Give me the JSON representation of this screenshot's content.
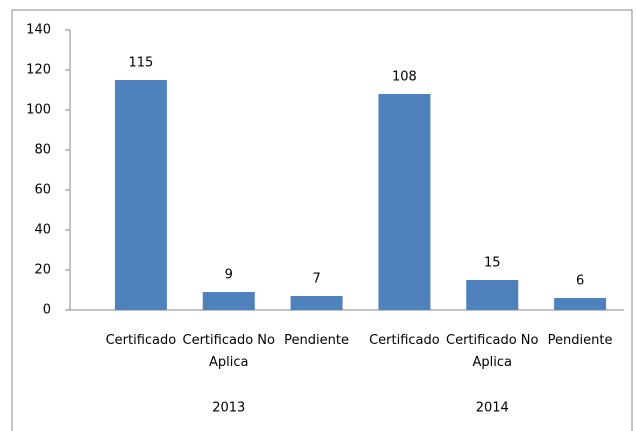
{
  "chart_data": {
    "type": "bar",
    "categories": [
      "Certificado",
      "Certificado No Aplica",
      "Pendiente",
      "Certificado",
      "Certificado No Aplica",
      "Pendiente"
    ],
    "groups": [
      "2013",
      "2014"
    ],
    "values": [
      115,
      9,
      7,
      108,
      15,
      6
    ],
    "color": "#4f81bd",
    "ylim": [
      0,
      140
    ],
    "yticks": [
      0,
      20,
      40,
      60,
      80,
      100,
      120,
      140
    ],
    "grid": false
  }
}
